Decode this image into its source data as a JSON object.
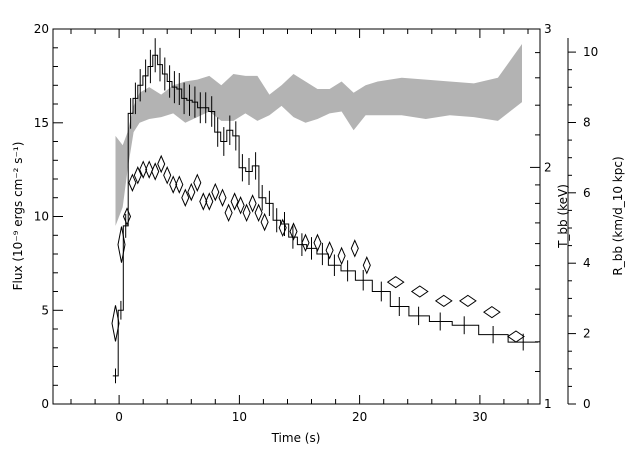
{
  "chart_data": {
    "type": "line",
    "x_axis": {
      "label": "Time (s)",
      "range": [
        -5.5,
        35
      ],
      "major_ticks": [
        0,
        10,
        20,
        30
      ],
      "tick_labels": [
        "0",
        "10",
        "20",
        "30"
      ],
      "minor_step": 2
    },
    "y_axis_left": {
      "label": "Flux (10⁻⁹ ergs cm⁻² s⁻¹)",
      "range": [
        0,
        20
      ],
      "major_ticks": [
        0,
        5,
        10,
        15,
        20
      ],
      "tick_labels": [
        "0",
        "5",
        "10",
        "15",
        "20"
      ]
    },
    "y_axis_temperature": {
      "label": "T_bb (keV)",
      "scale": "log",
      "range": [
        1,
        3
      ],
      "tick_values": [
        1,
        2,
        3
      ],
      "tick_labels": [
        "1",
        "2",
        "3"
      ]
    },
    "y_axis_radius": {
      "label": "R_bb (km/d_10 kpc)",
      "range": [
        0,
        10.4
      ],
      "major_ticks": [
        0,
        2,
        4,
        6,
        8,
        10
      ],
      "tick_labels": [
        "0",
        "2",
        "4",
        "6",
        "8",
        "10"
      ]
    },
    "series": [
      {
        "role": "flux",
        "style": "histogram with error bars",
        "points": [
          {
            "x": -0.3,
            "y": 1.5
          },
          {
            "x": 0.15,
            "y": 5.0
          },
          {
            "x": 0.55,
            "y": 9.5
          },
          {
            "x": 0.95,
            "y": 15.5
          },
          {
            "x": 1.35,
            "y": 16.3
          },
          {
            "x": 1.75,
            "y": 17.0
          },
          {
            "x": 2.2,
            "y": 17.5
          },
          {
            "x": 2.6,
            "y": 18.0
          },
          {
            "x": 3.0,
            "y": 18.6
          },
          {
            "x": 3.4,
            "y": 18.1
          },
          {
            "x": 3.8,
            "y": 17.6
          },
          {
            "x": 4.2,
            "y": 17.2
          },
          {
            "x": 4.6,
            "y": 16.9
          },
          {
            "x": 5.0,
            "y": 16.8
          },
          {
            "x": 5.4,
            "y": 16.3
          },
          {
            "x": 5.85,
            "y": 16.2
          },
          {
            "x": 6.3,
            "y": 16.1
          },
          {
            "x": 6.75,
            "y": 15.8
          },
          {
            "x": 7.2,
            "y": 15.8
          },
          {
            "x": 7.7,
            "y": 15.6
          },
          {
            "x": 8.2,
            "y": 14.5
          },
          {
            "x": 8.7,
            "y": 14.0
          },
          {
            "x": 9.2,
            "y": 14.6
          },
          {
            "x": 9.7,
            "y": 14.3
          },
          {
            "x": 10.25,
            "y": 12.6
          },
          {
            "x": 10.8,
            "y": 12.4
          },
          {
            "x": 11.35,
            "y": 12.7
          },
          {
            "x": 11.9,
            "y": 11.0
          },
          {
            "x": 12.5,
            "y": 10.7
          },
          {
            "x": 13.1,
            "y": 9.8
          },
          {
            "x": 13.75,
            "y": 9.6
          },
          {
            "x": 14.45,
            "y": 8.9
          },
          {
            "x": 15.2,
            "y": 8.5
          },
          {
            "x": 16.0,
            "y": 8.3
          },
          {
            "x": 16.9,
            "y": 8.0
          },
          {
            "x": 17.9,
            "y": 7.4
          },
          {
            "x": 19.0,
            "y": 7.1
          },
          {
            "x": 20.3,
            "y": 6.6
          },
          {
            "x": 21.8,
            "y": 6.0
          },
          {
            "x": 23.3,
            "y": 5.2
          },
          {
            "x": 24.9,
            "y": 4.7
          },
          {
            "x": 26.7,
            "y": 4.4
          },
          {
            "x": 28.7,
            "y": 4.2
          },
          {
            "x": 31.1,
            "y": 3.7
          },
          {
            "x": 33.6,
            "y": 3.3
          }
        ]
      },
      {
        "role": "temperature",
        "style": "diamonds",
        "points": [
          {
            "x": -0.3,
            "y": 4.3
          },
          {
            "x": 0.2,
            "y": 8.5
          },
          {
            "x": 0.65,
            "y": 10.0
          },
          {
            "x": 1.1,
            "y": 11.8
          },
          {
            "x": 1.55,
            "y": 12.2
          },
          {
            "x": 2.0,
            "y": 12.5
          },
          {
            "x": 2.5,
            "y": 12.5
          },
          {
            "x": 3.0,
            "y": 12.4
          },
          {
            "x": 3.5,
            "y": 12.8
          },
          {
            "x": 4.0,
            "y": 12.2
          },
          {
            "x": 4.5,
            "y": 11.7
          },
          {
            "x": 5.0,
            "y": 11.7
          },
          {
            "x": 5.5,
            "y": 11.0
          },
          {
            "x": 6.0,
            "y": 11.3
          },
          {
            "x": 6.5,
            "y": 11.8
          },
          {
            "x": 7.0,
            "y": 10.8
          },
          {
            "x": 7.5,
            "y": 10.8
          },
          {
            "x": 8.0,
            "y": 11.3
          },
          {
            "x": 8.6,
            "y": 11.0
          },
          {
            "x": 9.1,
            "y": 10.2
          },
          {
            "x": 9.6,
            "y": 10.8
          },
          {
            "x": 10.1,
            "y": 10.6
          },
          {
            "x": 10.6,
            "y": 10.2
          },
          {
            "x": 11.1,
            "y": 10.7
          },
          {
            "x": 11.6,
            "y": 10.2
          },
          {
            "x": 12.1,
            "y": 9.7
          },
          {
            "x": 13.6,
            "y": 9.4
          },
          {
            "x": 14.5,
            "y": 9.2
          },
          {
            "x": 15.5,
            "y": 8.6
          },
          {
            "x": 16.5,
            "y": 8.6
          },
          {
            "x": 17.5,
            "y": 8.2
          },
          {
            "x": 18.5,
            "y": 7.9
          },
          {
            "x": 19.6,
            "y": 8.3
          },
          {
            "x": 20.6,
            "y": 7.4
          },
          {
            "x": 23.0,
            "y": 6.5
          },
          {
            "x": 25.0,
            "y": 6.0
          },
          {
            "x": 27.0,
            "y": 5.5
          },
          {
            "x": 29.0,
            "y": 5.5
          },
          {
            "x": 31.0,
            "y": 4.9
          },
          {
            "x": 33.0,
            "y": 3.6
          }
        ]
      },
      {
        "role": "radius",
        "style": "shaded band",
        "band_units": "left-axis values",
        "x": [
          -0.3,
          0.3,
          0.7,
          1.2,
          1.7,
          2.5,
          3.5,
          4.5,
          5.5,
          6.5,
          7.5,
          8.5,
          9.5,
          10.5,
          11.5,
          12.5,
          13.5,
          14.5,
          15.5,
          16.5,
          17.5,
          18.5,
          19.5,
          20.5,
          21.5,
          23.5,
          25.5,
          27.5,
          29.5,
          31.5,
          33.5
        ],
        "lower": [
          9.5,
          10.5,
          12.5,
          14.5,
          15.0,
          15.2,
          15.3,
          15.5,
          15.0,
          15.3,
          15.6,
          15.1,
          15.1,
          15.5,
          15.1,
          15.4,
          15.9,
          15.3,
          15.0,
          15.2,
          15.5,
          15.6,
          14.6,
          15.4,
          15.4,
          15.4,
          15.2,
          15.4,
          15.3,
          15.1,
          16.1
        ],
        "upper": [
          14.3,
          13.8,
          14.5,
          15.9,
          16.6,
          16.9,
          16.5,
          17.0,
          17.2,
          17.3,
          17.5,
          17.0,
          17.6,
          17.5,
          17.5,
          16.5,
          17.0,
          17.6,
          17.2,
          16.8,
          16.8,
          17.2,
          16.6,
          17.0,
          17.2,
          17.4,
          17.3,
          17.2,
          17.1,
          17.4,
          19.2
        ]
      }
    ]
  }
}
